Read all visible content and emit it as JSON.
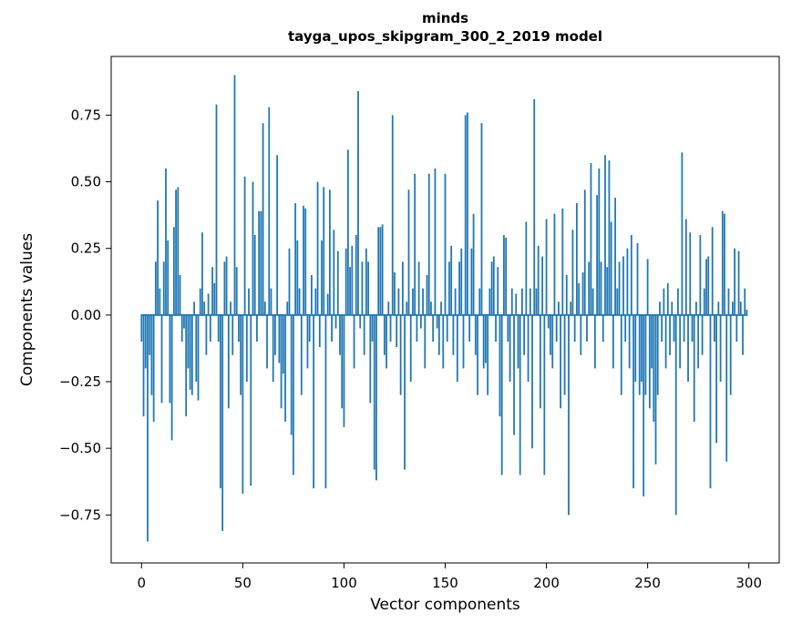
{
  "figure": {
    "title_line1": "minds",
    "title_line2": "tayga_upos_skipgram_300_2_2019 model",
    "xlabel": "Vector components",
    "ylabel": "Components values"
  },
  "chart_data": {
    "type": "bar",
    "title": "minds — tayga_upos_skipgram_300_2_2019 model",
    "xlabel": "Vector components",
    "ylabel": "Components values",
    "legend": null,
    "grid": false,
    "bar_color": "#1f77b4",
    "xlim": [
      -15,
      315
    ],
    "ylim": [
      -0.93,
      0.97
    ],
    "x_ticks": [
      0,
      50,
      100,
      150,
      200,
      250,
      300
    ],
    "y_ticks": [
      0.75,
      0.5,
      0.25,
      0.0,
      -0.25,
      -0.5,
      -0.75
    ],
    "x_start": 0,
    "values": [
      -0.1,
      -0.38,
      -0.2,
      -0.85,
      -0.15,
      -0.3,
      -0.4,
      0.2,
      0.43,
      0.1,
      -0.33,
      0.2,
      0.55,
      0.28,
      -0.33,
      -0.47,
      0.33,
      0.47,
      0.48,
      0.15,
      -0.1,
      -0.05,
      -0.38,
      -0.2,
      -0.28,
      -0.3,
      0.05,
      -0.25,
      -0.32,
      0.1,
      0.31,
      0.05,
      -0.15,
      0.08,
      -0.1,
      0.18,
      0.12,
      0.79,
      -0.1,
      -0.65,
      -0.81,
      0.2,
      0.22,
      -0.35,
      0.05,
      -0.15,
      0.9,
      0.18,
      -0.1,
      -0.3,
      -0.67,
      0.52,
      -0.25,
      0.1,
      -0.64,
      0.5,
      0.3,
      -0.1,
      0.39,
      0.39,
      0.72,
      0.05,
      -0.2,
      0.78,
      0.1,
      -0.25,
      -0.15,
      0.6,
      -0.18,
      -0.35,
      -0.22,
      -0.4,
      0.05,
      0.25,
      -0.45,
      -0.6,
      0.42,
      0.28,
      0.1,
      -0.3,
      0.41,
      0.4,
      -0.2,
      -0.1,
      0.15,
      -0.65,
      0.1,
      0.5,
      -0.12,
      0.28,
      0.48,
      -0.65,
      0.08,
      0.47,
      -0.1,
      0.32,
      -0.05,
      0.24,
      -0.15,
      -0.35,
      -0.42,
      0.25,
      0.62,
      0.18,
      0.26,
      -0.2,
      0.3,
      0.84,
      -0.05,
      0.2,
      -0.15,
      0.25,
      0.2,
      -0.33,
      -0.1,
      -0.58,
      -0.62,
      0.33,
      0.33,
      0.34,
      -0.15,
      -0.2,
      0.05,
      -0.1,
      0.75,
      0.16,
      -0.12,
      0.1,
      -0.3,
      0.2,
      -0.58,
      0.05,
      0.47,
      -0.25,
      0.1,
      0.53,
      -0.1,
      0.2,
      -0.05,
      0.1,
      -0.2,
      0.15,
      0.53,
      0.05,
      -0.1,
      0.55,
      -0.05,
      -0.15,
      0.05,
      -0.2,
      0.53,
      -0.1,
      0.2,
      0.26,
      -0.15,
      0.1,
      -0.25,
      0.2,
      0.25,
      -0.2,
      0.75,
      0.76,
      -0.1,
      0.25,
      0.38,
      -0.15,
      -0.3,
      0.1,
      0.72,
      -0.2,
      -0.18,
      -0.3,
      0.1,
      0.2,
      0.22,
      -0.1,
      0.18,
      -0.38,
      -0.6,
      0.3,
      0.29,
      -0.1,
      -0.25,
      0.1,
      -0.45,
      0.08,
      -0.2,
      -0.6,
      0.1,
      -0.15,
      0.35,
      -0.25,
      0.1,
      -0.5,
      0.81,
      0.1,
      0.26,
      -0.35,
      0.22,
      -0.6,
      0.36,
      -0.05,
      -0.15,
      -0.2,
      0.38,
      -0.1,
      0.05,
      -0.35,
      0.4,
      -0.3,
      0.15,
      -0.75,
      0.05,
      0.32,
      -0.1,
      0.42,
      0.12,
      -0.15,
      0.16,
      0.47,
      -0.1,
      0.2,
      0.57,
      0.1,
      -0.2,
      0.45,
      0.55,
      0.2,
      -0.1,
      0.6,
      0.18,
      0.58,
      0.35,
      -0.2,
      0.44,
      0.1,
      0.2,
      -0.3,
      0.22,
      -0.1,
      0.25,
      -0.2,
      0.3,
      -0.65,
      -0.25,
      0.27,
      -0.3,
      -0.25,
      -0.68,
      -0.3,
      0.21,
      -0.35,
      -0.2,
      -0.4,
      -0.56,
      -0.3,
      0.05,
      -0.1,
      0.1,
      -0.2,
      0.12,
      -0.15,
      0.05,
      -0.1,
      -0.75,
      0.1,
      -0.2,
      0.61,
      -0.1,
      0.36,
      -0.25,
      0.31,
      -0.1,
      -0.4,
      0.05,
      -0.2,
      0.3,
      -0.15,
      0.1,
      0.21,
      0.22,
      -0.65,
      0.33,
      -0.1,
      -0.48,
      0.05,
      -0.25,
      0.39,
      0.38,
      -0.55,
      0.1,
      -0.3,
      0.05,
      0.25,
      -0.1,
      0.24,
      0.05,
      -0.15,
      0.1,
      0.02
    ]
  }
}
